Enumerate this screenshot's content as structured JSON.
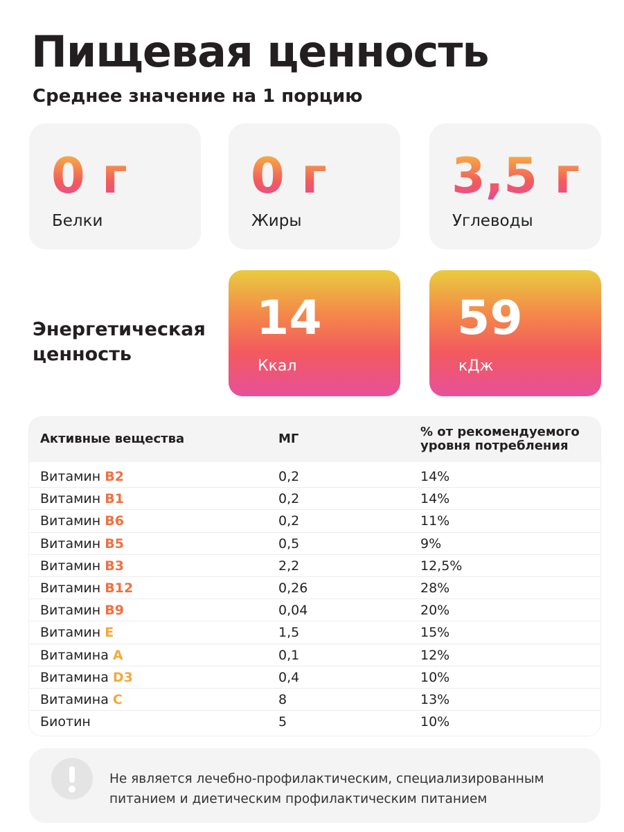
{
  "header": {
    "title": "Пищевая ценность",
    "subtitle": "Среднее значение на 1 порцию"
  },
  "macros": [
    {
      "value": "0 г",
      "label": "Белки"
    },
    {
      "value": "0 г",
      "label": "Жиры"
    },
    {
      "value": "3,5 г",
      "label": "Углеводы"
    }
  ],
  "energy": {
    "label": "Энергетическая ценность",
    "cards": [
      {
        "value": "14",
        "unit": "Ккал"
      },
      {
        "value": "59",
        "unit": "кДж"
      }
    ]
  },
  "table": {
    "headers": [
      "Активные вещества",
      "МГ",
      "% от рекомендуемого уровня потребления"
    ],
    "rows": [
      {
        "name": "Витамин",
        "highlight": "B2",
        "color": "#f07040",
        "mg": "0,2",
        "pct": "14%"
      },
      {
        "name": "Витамин",
        "highlight": "B1",
        "color": "#f07040",
        "mg": "0,2",
        "pct": "14%"
      },
      {
        "name": "Витамин",
        "highlight": "B6",
        "color": "#f07040",
        "mg": "0,2",
        "pct": "11%"
      },
      {
        "name": "Витамин",
        "highlight": "B5",
        "color": "#f07040",
        "mg": "0,5",
        "pct": "9%"
      },
      {
        "name": "Витамин",
        "highlight": "B3",
        "color": "#f07040",
        "mg": "2,2",
        "pct": "12,5%"
      },
      {
        "name": "Витамин",
        "highlight": "B12",
        "color": "#f07040",
        "mg": "0,26",
        "pct": "28%"
      },
      {
        "name": "Витамин",
        "highlight": "B9",
        "color": "#f07040",
        "mg": "0,04",
        "pct": "20%"
      },
      {
        "name": "Витамин",
        "highlight": "E",
        "color": "#f4a93a",
        "mg": "1,5",
        "pct": "15%"
      },
      {
        "name": "Витамина",
        "highlight": "A",
        "color": "#f4a93a",
        "mg": "0,1",
        "pct": "12%"
      },
      {
        "name": "Витамина",
        "highlight": "D3",
        "color": "#f4a93a",
        "mg": "0,4",
        "pct": "10%"
      },
      {
        "name": "Витамина",
        "highlight": "C",
        "color": "#f4a93a",
        "mg": "8",
        "pct": "13%"
      },
      {
        "name": "Биотин",
        "mg": "5",
        "pct": "10%"
      }
    ]
  },
  "note": {
    "text": "Не является лечебно-профилактическим, специализированным питанием и диетическим профилактическим питанием"
  }
}
